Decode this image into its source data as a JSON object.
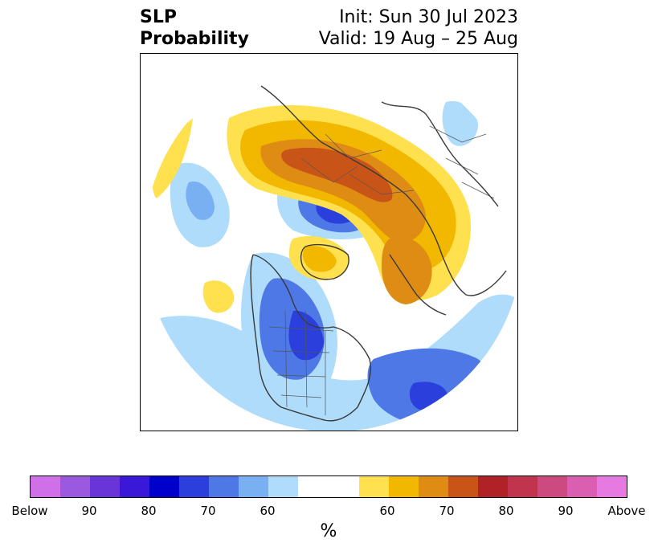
{
  "title": {
    "left_line1": "SLP",
    "left_line2": "Probability",
    "right_line1": "Init: Sun 30 Jul 2023",
    "right_line2": "Valid: 19 Aug – 25 Aug"
  },
  "colorbar": {
    "unit": "%",
    "colors": [
      "#d070e8",
      "#9b59e0",
      "#6a35d8",
      "#3a18d8",
      "#0000cc",
      "#2a3fdc",
      "#4d78e6",
      "#78b0f2",
      "#aedcfa",
      "#ffffff",
      "#ffe04e",
      "#f2b800",
      "#df8c14",
      "#c85418",
      "#b02226",
      "#c0344e",
      "#cc4a80",
      "#da5fb0",
      "#e67ae0"
    ],
    "labels": [
      "Below",
      "90",
      "80",
      "70",
      "60",
      "60",
      "70",
      "80",
      "90",
      "Above"
    ]
  },
  "legend_colors": {
    "above": "#f2b800",
    "below": "#4d78e6",
    "coastline": "#3a3a3a"
  }
}
